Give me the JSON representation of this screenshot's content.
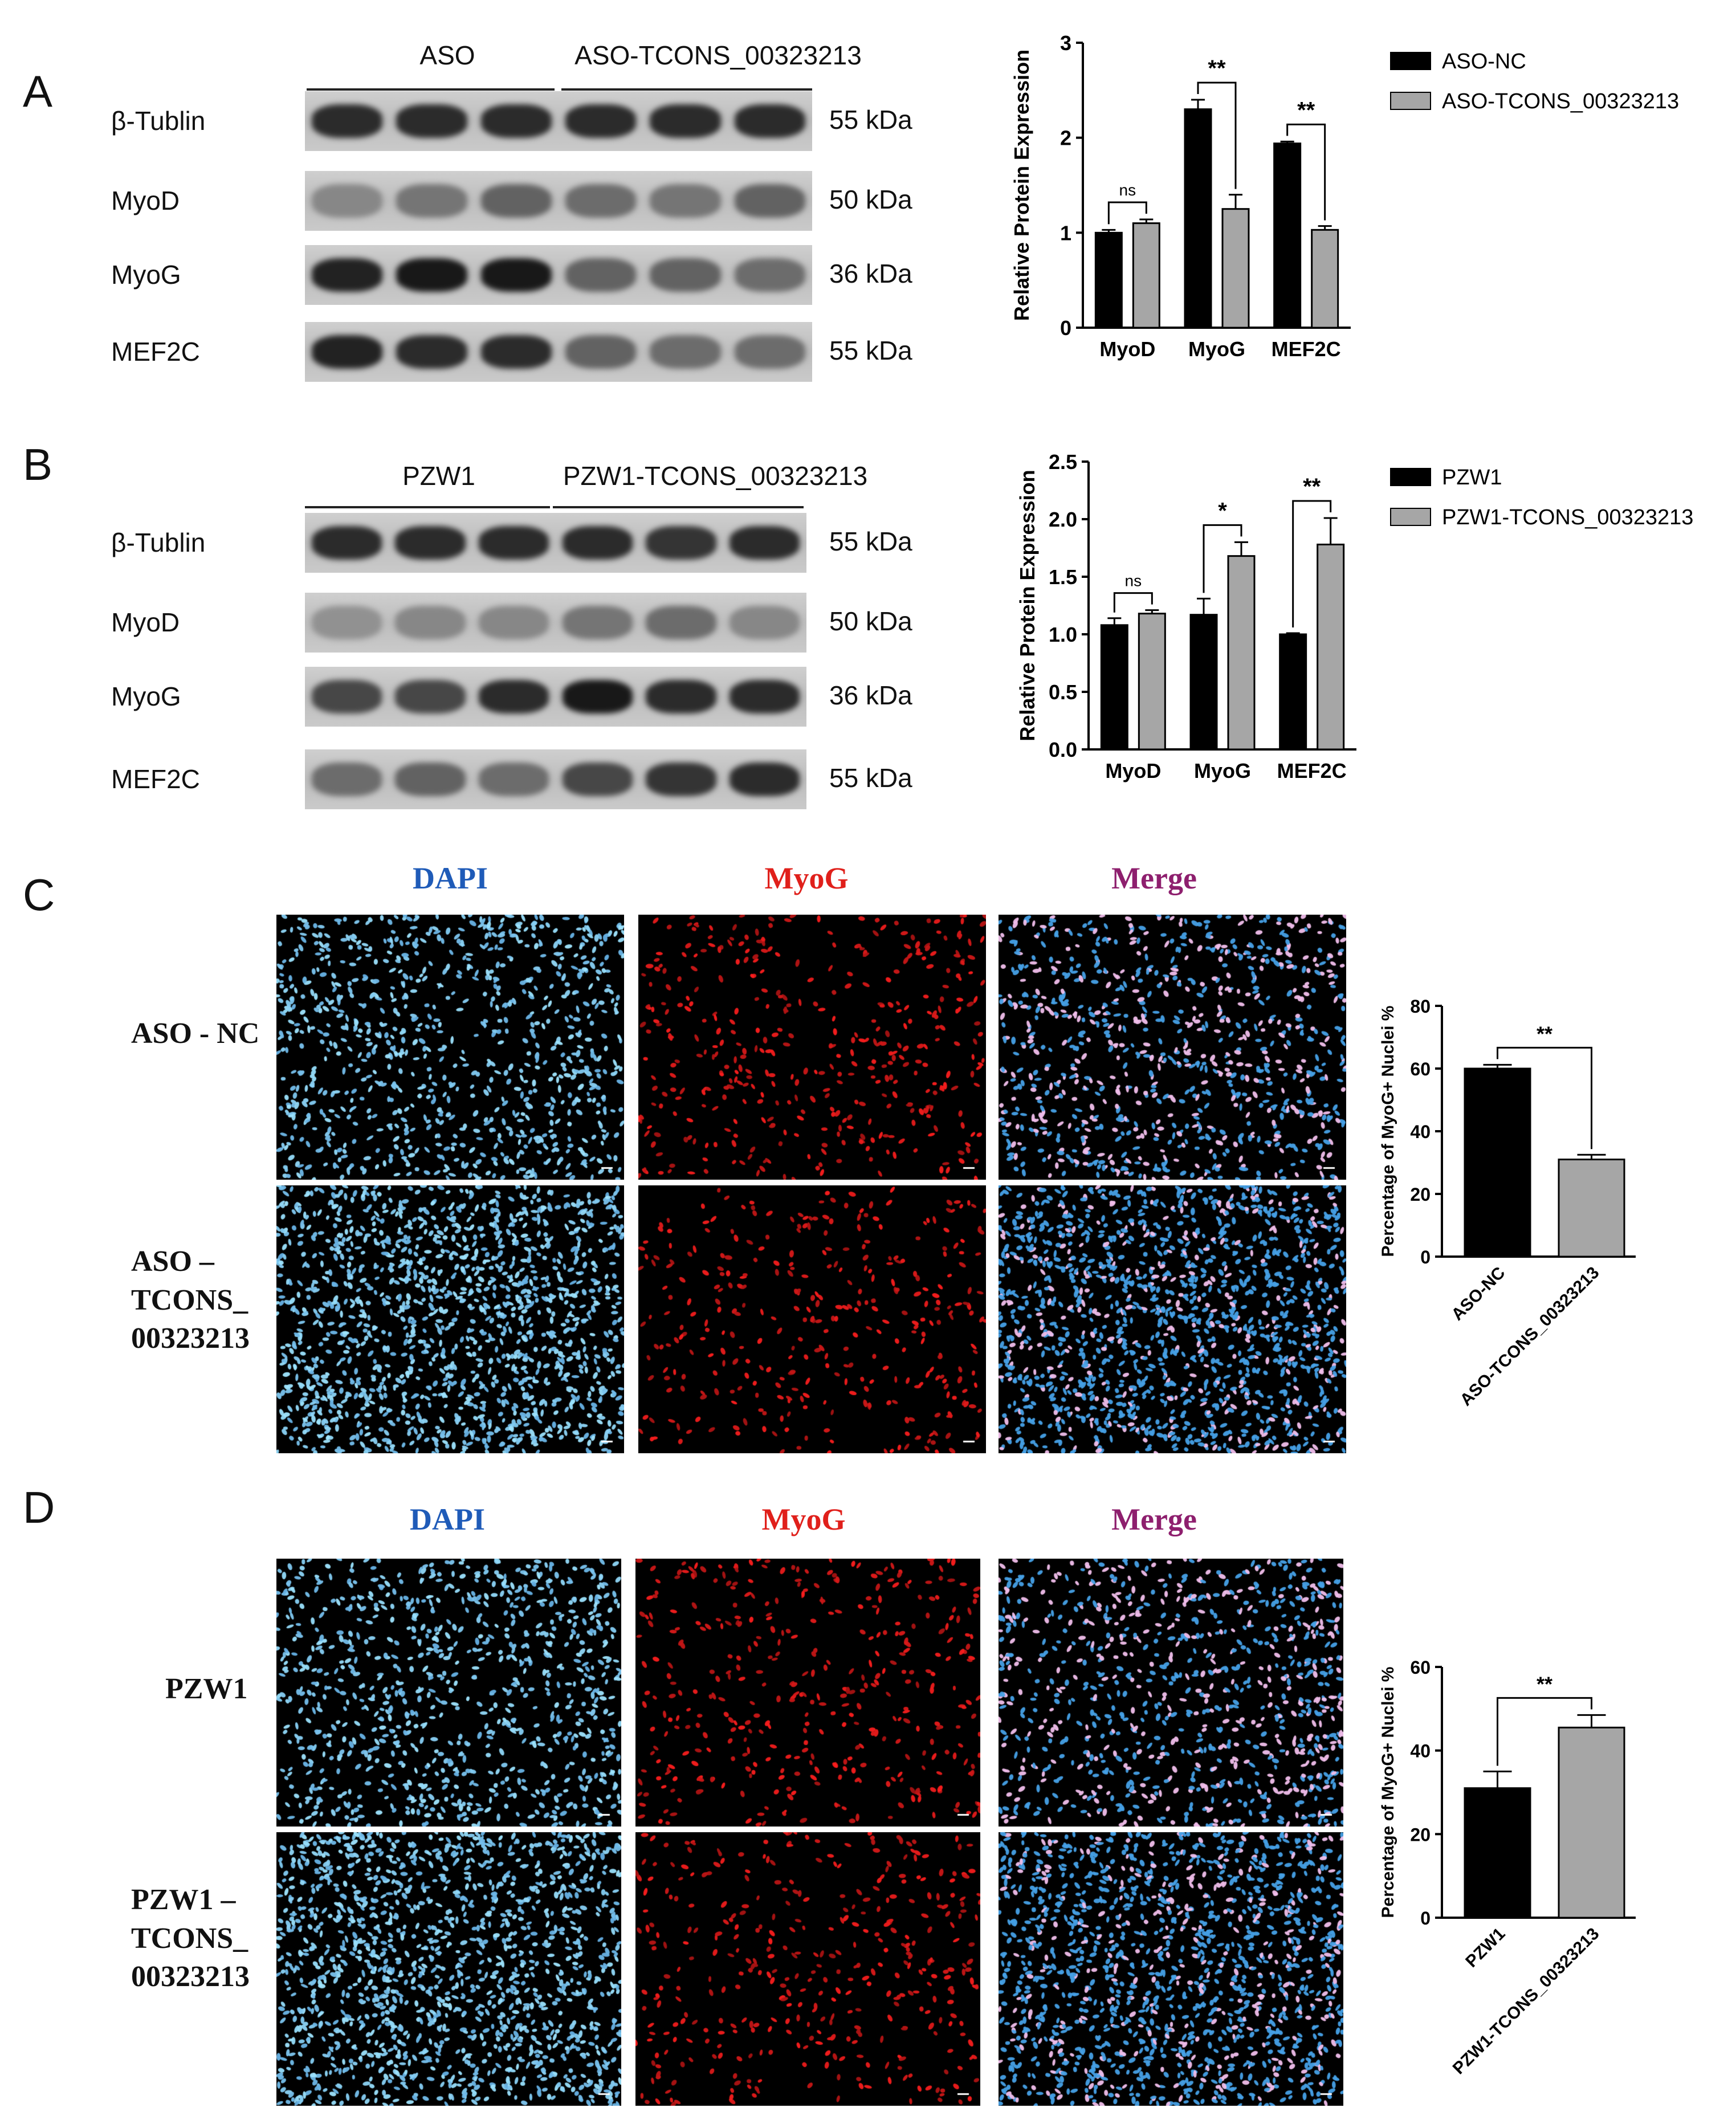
{
  "panels": {
    "A": {
      "letter": "A",
      "groups": [
        "ASO",
        "ASO-TCONS_00323213"
      ],
      "blots": [
        {
          "label": "β-Tublin",
          "kda": "55 kDa",
          "bands": [
            0.85,
            0.85,
            0.85,
            0.85,
            0.85,
            0.85
          ]
        },
        {
          "label": "MyoD",
          "kda": "50 kDa",
          "bands": [
            0.35,
            0.45,
            0.55,
            0.5,
            0.45,
            0.55
          ]
        },
        {
          "label": "MyoG",
          "kda": "36 kDa",
          "bands": [
            0.9,
            0.95,
            0.95,
            0.55,
            0.55,
            0.5
          ]
        },
        {
          "label": "MEF2C",
          "kda": "55 kDa",
          "bands": [
            0.9,
            0.85,
            0.85,
            0.55,
            0.5,
            0.5
          ]
        }
      ],
      "chart": {
        "ylabel": "Relative Protein Expression",
        "ylim": [
          0,
          3
        ],
        "yticks": [
          "0",
          "1",
          "2",
          "3"
        ],
        "categories": [
          "MyoD",
          "MyoG",
          "MEF2C"
        ],
        "legend": [
          "ASO-NC",
          "ASO-TCONS_00323213"
        ],
        "sig": [
          "ns",
          "**",
          "**"
        ]
      }
    },
    "B": {
      "letter": "B",
      "groups": [
        "PZW1",
        "PZW1-TCONS_00323213"
      ],
      "blots": [
        {
          "label": "β-Tublin",
          "kda": "55 kDa",
          "bands": [
            0.85,
            0.85,
            0.85,
            0.85,
            0.8,
            0.85
          ]
        },
        {
          "label": "MyoD",
          "kda": "50 kDa",
          "bands": [
            0.3,
            0.35,
            0.35,
            0.45,
            0.5,
            0.35
          ]
        },
        {
          "label": "MyoG",
          "kda": "36 kDa",
          "bands": [
            0.7,
            0.7,
            0.85,
            0.95,
            0.85,
            0.85
          ]
        },
        {
          "label": "MEF2C",
          "kda": "55 kDa",
          "bands": [
            0.5,
            0.55,
            0.5,
            0.7,
            0.8,
            0.85
          ]
        }
      ],
      "chart": {
        "ylabel": "Relative Protein Expression",
        "ylim": [
          0,
          2.5
        ],
        "yticks": [
          "0.0",
          "0.5",
          "1.0",
          "1.5",
          "2.0",
          "2.5"
        ],
        "categories": [
          "MyoD",
          "MyoG",
          "MEF2C"
        ],
        "legend": [
          "PZW1",
          "PZW1-TCONS_00323213"
        ],
        "sig": [
          "ns",
          "*",
          "**"
        ]
      }
    },
    "C": {
      "letter": "C",
      "headers": [
        "DAPI",
        "MyoG",
        "Merge"
      ],
      "rows": [
        "ASO - NC",
        "ASO –\nTCONS_\n00323213"
      ],
      "chart": {
        "ylabel": "Percentage of MyoG+ Nuclei %",
        "ylim": [
          0,
          80
        ],
        "yticks": [
          "0",
          "20",
          "40",
          "60",
          "80"
        ],
        "categories": [
          "ASO-NC",
          "ASO-TCONS_00323213"
        ],
        "sig": "**"
      }
    },
    "D": {
      "letter": "D",
      "headers": [
        "DAPI",
        "MyoG",
        "Merge"
      ],
      "rows": [
        "PZW1",
        "PZW1 –\nTCONS_\n00323213"
      ],
      "chart": {
        "ylabel": "Percentage of MyoG+ Nuclei %",
        "ylim": [
          0,
          60
        ],
        "yticks": [
          "0",
          "20",
          "40",
          "60"
        ],
        "categories": [
          "PZW1",
          "PZW1-TCONS_00323213"
        ],
        "sig": "**"
      }
    }
  },
  "chart_data": [
    {
      "type": "bar",
      "categories": [
        "MyoD",
        "MyoG",
        "MEF2C"
      ],
      "series": [
        {
          "name": "ASO-NC",
          "values": [
            1.0,
            2.3,
            1.94
          ],
          "errors": [
            0.03,
            0.1,
            0.02
          ],
          "color": "#000000"
        },
        {
          "name": "ASO-TCONS_00323213",
          "values": [
            1.1,
            1.25,
            1.03
          ],
          "errors": [
            0.04,
            0.15,
            0.04
          ],
          "color": "#a6a6a6"
        }
      ],
      "ylabel": "Relative Protein Expression",
      "ylim": [
        0,
        3
      ],
      "legend": "top-right"
    },
    {
      "type": "bar",
      "categories": [
        "MyoD",
        "MyoG",
        "MEF2C"
      ],
      "series": [
        {
          "name": "PZW1",
          "values": [
            1.08,
            1.17,
            1.0
          ],
          "errors": [
            0.06,
            0.14,
            0.01
          ],
          "color": "#000000"
        },
        {
          "name": "PZW1-TCONS_00323213",
          "values": [
            1.18,
            1.68,
            1.78
          ],
          "errors": [
            0.03,
            0.12,
            0.23
          ],
          "color": "#a6a6a6"
        }
      ],
      "ylabel": "Relative Protein Expression",
      "ylim": [
        0,
        2.5
      ],
      "legend": "top-right"
    },
    {
      "type": "bar",
      "categories": [
        "ASO-NC",
        "ASO-TCONS_00323213"
      ],
      "values": [
        60,
        31
      ],
      "errors": [
        1.2,
        1.5
      ],
      "colors": [
        "#000000",
        "#a6a6a6"
      ],
      "ylabel": "Percentage of MyoG+ Nuclei %",
      "ylim": [
        0,
        80
      ]
    },
    {
      "type": "bar",
      "categories": [
        "PZW1",
        "PZW1-TCONS_00323213"
      ],
      "values": [
        31,
        45.5
      ],
      "errors": [
        4,
        3
      ],
      "colors": [
        "#000000",
        "#a6a6a6"
      ],
      "ylabel": "Percentage of MyoG+ Nuclei %",
      "ylim": [
        0,
        60
      ]
    }
  ],
  "colors": {
    "dapi": "#1f5bb8",
    "myog": "#e0201b",
    "merge": "#8e1f6e",
    "bar_black": "#000000",
    "bar_grey": "#a6a6a6"
  }
}
